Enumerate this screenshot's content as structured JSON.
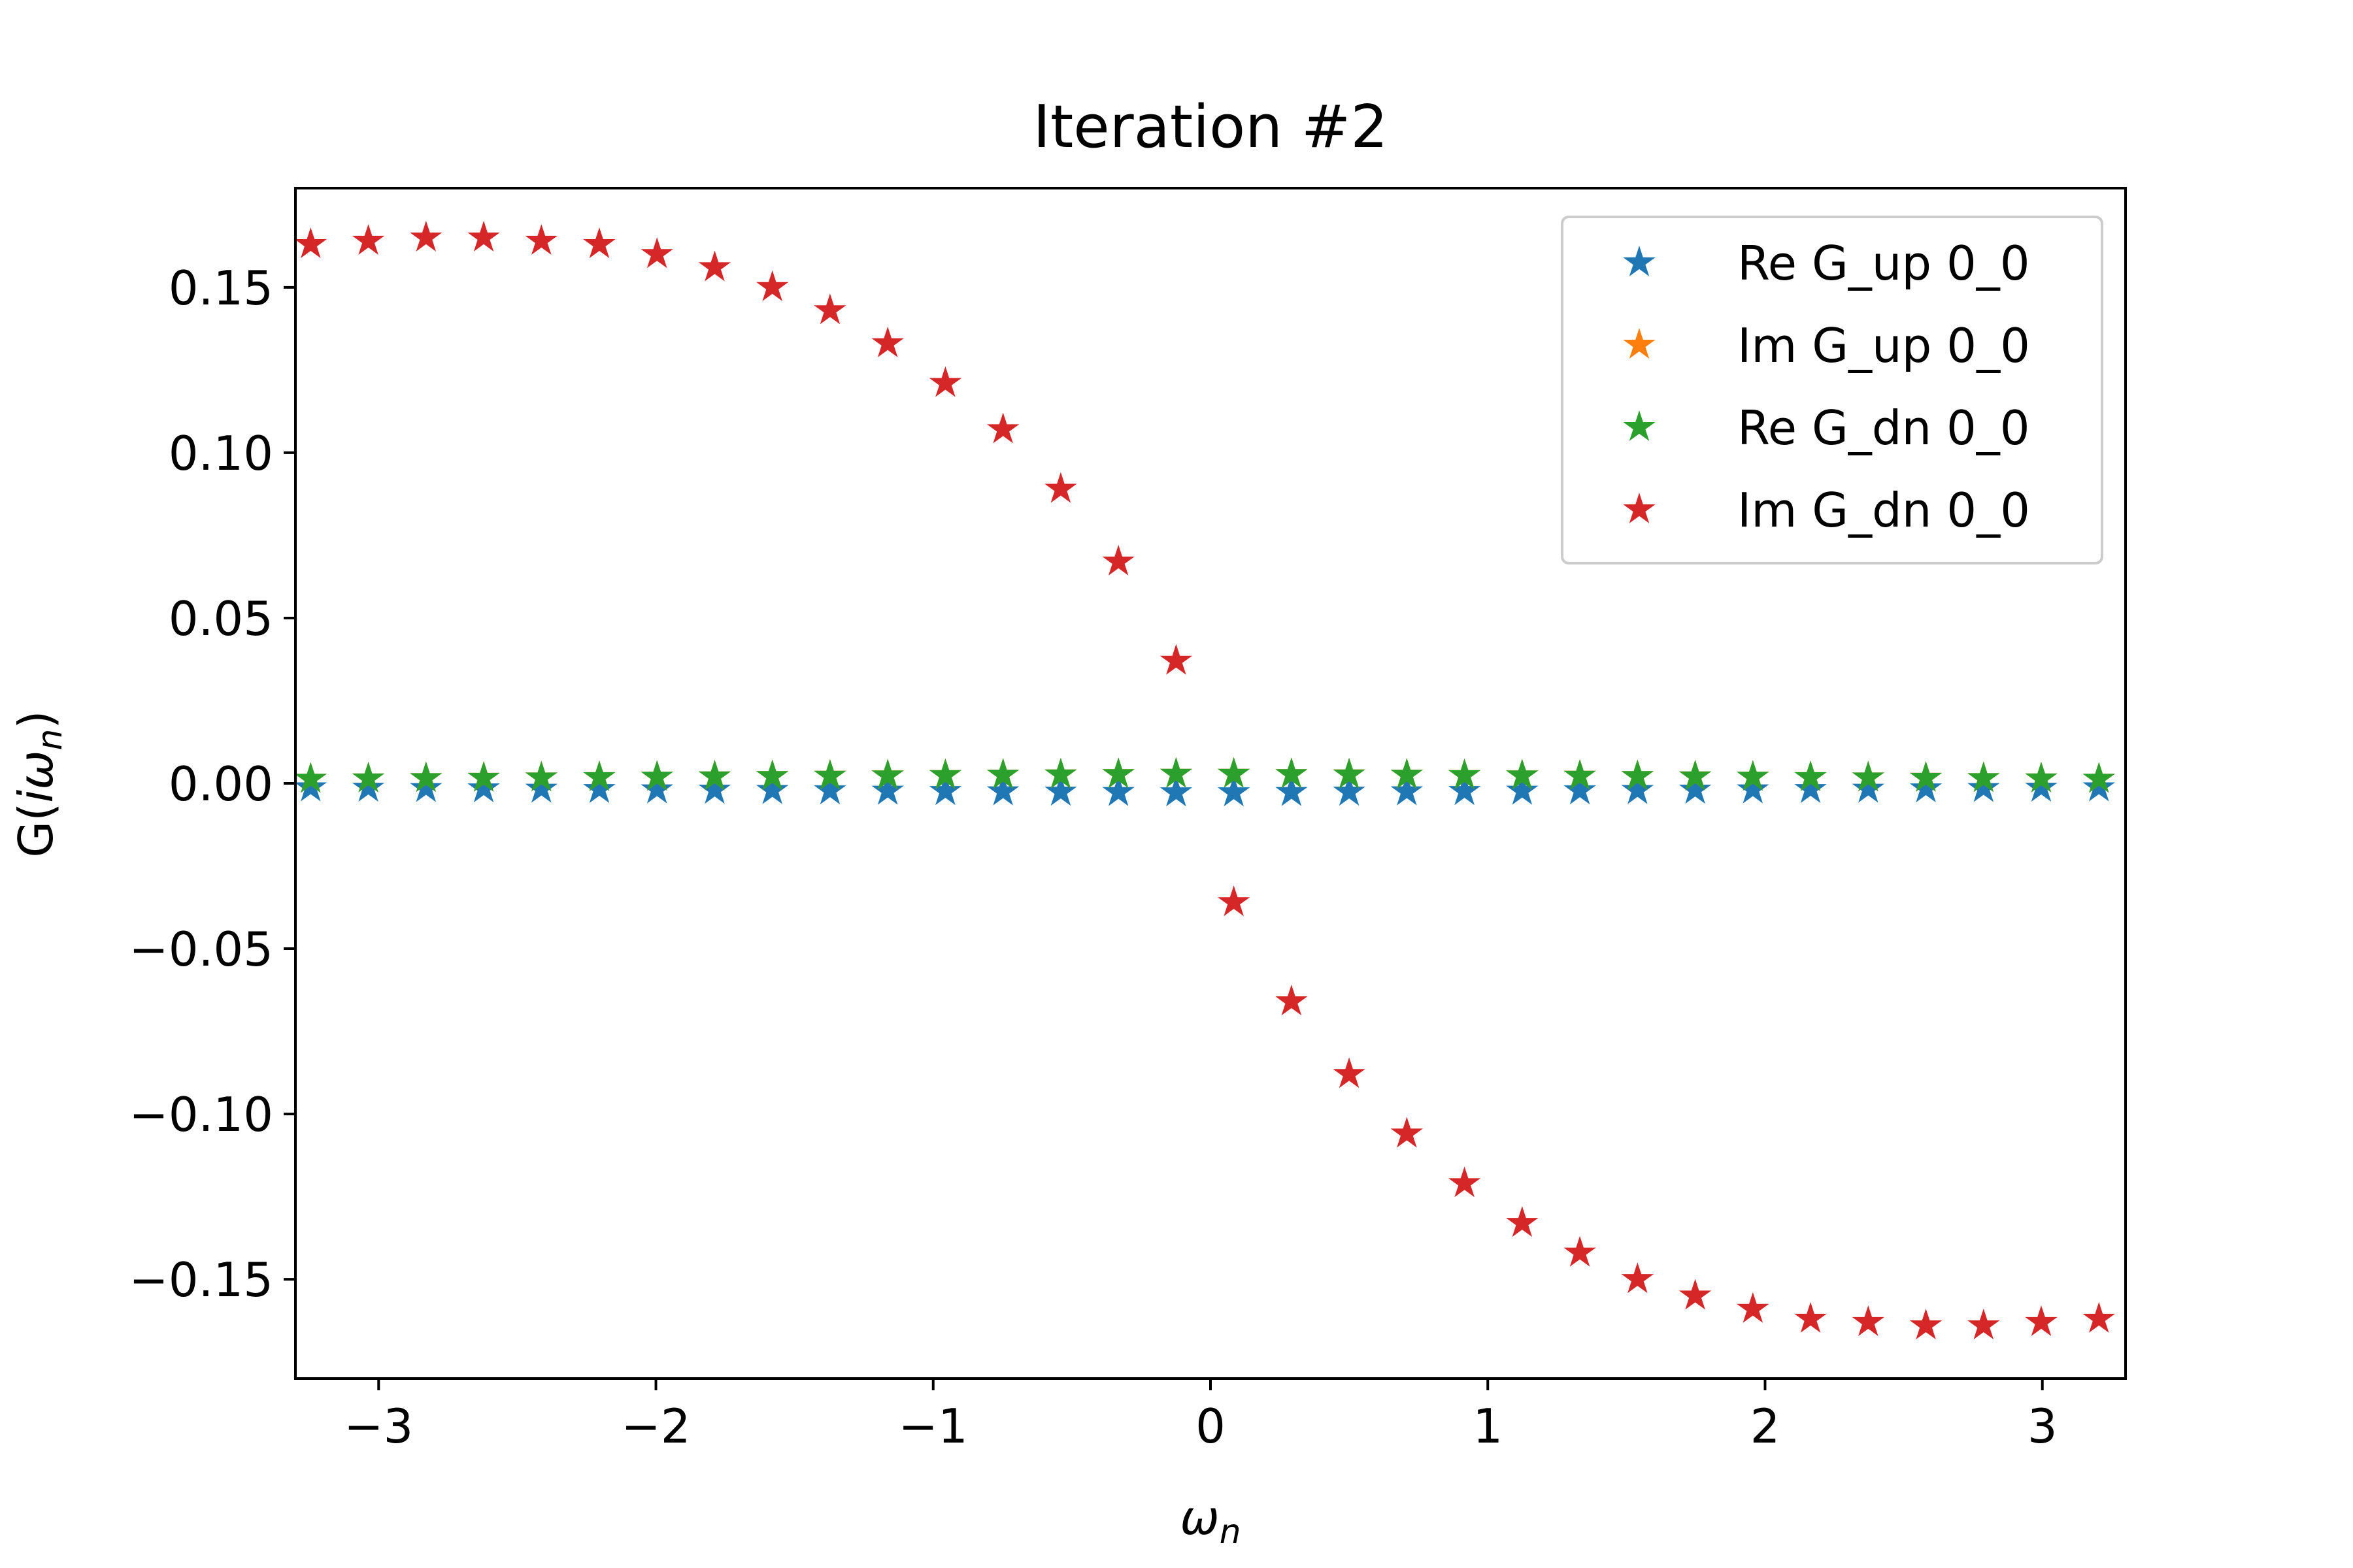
{
  "chart_data": {
    "type": "scatter",
    "title": "Iteration #2",
    "xlabel": "ω_n",
    "ylabel": "G(iω_n)",
    "xlim": [
      -3.3,
      3.3
    ],
    "ylim": [
      -0.18,
      0.18
    ],
    "x_ticks": [
      -3,
      -2,
      -1,
      0,
      1,
      2,
      3
    ],
    "x_tick_labels": [
      "−3",
      "−2",
      "−1",
      "0",
      "1",
      "2",
      "3"
    ],
    "y_ticks": [
      0.15,
      0.1,
      0.05,
      0.0,
      -0.05,
      -0.1,
      -0.15
    ],
    "y_tick_labels": [
      "0.15",
      "0.10",
      "0.05",
      "0.00",
      "−0.05",
      "−0.10",
      "−0.15"
    ],
    "grid": false,
    "legend_position": "top-right",
    "marker": "star",
    "x": [
      -3.245,
      -3.037,
      -2.829,
      -2.621,
      -2.413,
      -2.204,
      -1.996,
      -1.788,
      -1.58,
      -1.372,
      -1.164,
      -0.956,
      -0.748,
      -0.54,
      -0.332,
      -0.124,
      0.084,
      0.292,
      0.5,
      0.708,
      0.916,
      1.124,
      1.332,
      1.54,
      1.748,
      1.956,
      2.164,
      2.372,
      2.58,
      2.788,
      2.996,
      3.204
    ],
    "series": [
      {
        "name": "Re G_up 0_0",
        "color": "#1f77b4",
        "values": [
          -0.0013,
          -0.0014,
          -0.0015,
          -0.0016,
          -0.0017,
          -0.0018,
          -0.0019,
          -0.002,
          -0.0021,
          -0.0022,
          -0.0023,
          -0.0024,
          -0.0025,
          -0.0026,
          -0.0027,
          -0.0028,
          -0.0028,
          -0.0027,
          -0.0026,
          -0.0025,
          -0.0024,
          -0.0023,
          -0.0022,
          -0.0021,
          -0.002,
          -0.0019,
          -0.0018,
          -0.0017,
          -0.0016,
          -0.0015,
          -0.0014,
          -0.0013
        ]
      },
      {
        "name": "Im G_up 0_0",
        "color": "#ff7f0e",
        "values": [
          0.0013,
          0.0014,
          0.0015,
          0.0016,
          0.0017,
          0.0018,
          0.0019,
          0.002,
          0.0021,
          0.0022,
          0.0023,
          0.0024,
          0.0025,
          0.0026,
          0.0027,
          0.0028,
          0.0028,
          0.0027,
          0.0026,
          0.0025,
          0.0024,
          0.0023,
          0.0022,
          0.0021,
          0.002,
          0.0019,
          0.0018,
          0.0017,
          0.0016,
          0.0015,
          0.0014,
          0.0013
        ]
      },
      {
        "name": "Re G_dn 0_0",
        "color": "#2ca02c",
        "values": [
          0.0013,
          0.0014,
          0.0015,
          0.0016,
          0.0017,
          0.0018,
          0.0019,
          0.002,
          0.0021,
          0.0022,
          0.0023,
          0.0024,
          0.0025,
          0.0026,
          0.0027,
          0.0028,
          0.0028,
          0.0027,
          0.0026,
          0.0025,
          0.0024,
          0.0023,
          0.0022,
          0.0021,
          0.002,
          0.0019,
          0.0018,
          0.0017,
          0.0016,
          0.0015,
          0.0014,
          0.0013
        ]
      },
      {
        "name": "Im G_dn 0_0",
        "color": "#d62728",
        "values": [
          0.163,
          0.164,
          0.165,
          0.165,
          0.164,
          0.163,
          0.16,
          0.156,
          0.15,
          0.143,
          0.133,
          0.121,
          0.107,
          0.089,
          0.067,
          0.037,
          -0.036,
          -0.066,
          -0.088,
          -0.106,
          -0.121,
          -0.133,
          -0.142,
          -0.15,
          -0.155,
          -0.159,
          -0.162,
          -0.163,
          -0.164,
          -0.164,
          -0.163,
          -0.162
        ]
      }
    ]
  }
}
